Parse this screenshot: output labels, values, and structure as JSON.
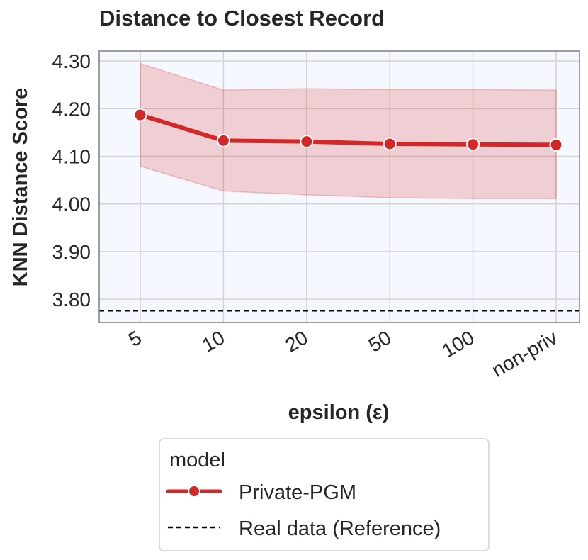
{
  "chart_data": {
    "type": "line",
    "title": "Distance to Closest Record",
    "xlabel": "epsilon (ε)",
    "ylabel": "KNN Distance Score",
    "categories": [
      "5",
      "10",
      "20",
      "50",
      "100",
      "non-priv"
    ],
    "yticks": [
      "4.30",
      "4.20",
      "4.10",
      "4.00",
      "3.90",
      "3.80"
    ],
    "ylim": [
      3.751,
      4.321
    ],
    "grid": true,
    "series": [
      {
        "name": "Private-PGM",
        "color": "#d62728",
        "marker": "circle",
        "values": [
          4.187,
          4.133,
          4.131,
          4.126,
          4.125,
          4.124
        ],
        "ci_lower": [
          4.079,
          4.027,
          4.019,
          4.013,
          4.011,
          4.011
        ],
        "ci_upper": [
          4.295,
          4.239,
          4.242,
          4.24,
          4.24,
          4.239
        ]
      }
    ],
    "reference_line": {
      "name": "Real data (Reference)",
      "value": 3.776,
      "color": "#000000",
      "style": "dashed"
    },
    "legend": {
      "title": "model",
      "position": "bottom-center",
      "entries": [
        "Private-PGM",
        "Real data (Reference)"
      ]
    }
  }
}
